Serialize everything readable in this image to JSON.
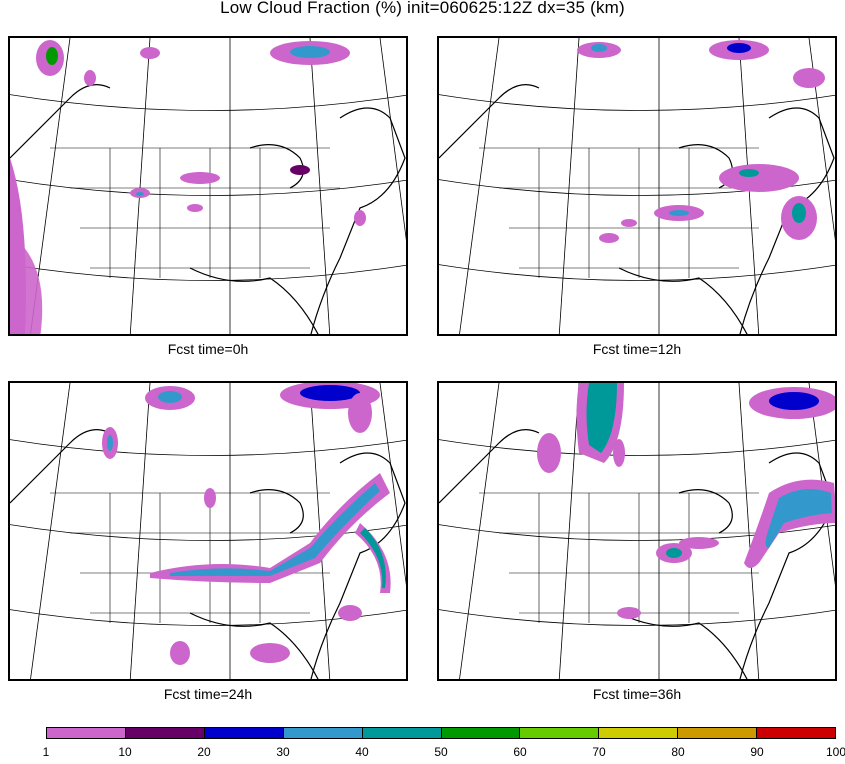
{
  "title": "Low Cloud Fraction (%) init=060625:12Z dx=35 (km)",
  "panels": [
    {
      "caption": "Fcst time=0h"
    },
    {
      "caption": "Fcst time=12h"
    },
    {
      "caption": "Fcst time=24h"
    },
    {
      "caption": "Fcst time=36h"
    }
  ],
  "colorbar": {
    "ticks": [
      "1",
      "10",
      "20",
      "30",
      "40",
      "50",
      "60",
      "70",
      "80",
      "90",
      "100"
    ],
    "colors": [
      "#cc66cc",
      "#660066",
      "#0000cc",
      "#3399cc",
      "#009999",
      "#009900",
      "#66cc00",
      "#cccc00",
      "#cc9900",
      "#cc0000"
    ]
  }
}
